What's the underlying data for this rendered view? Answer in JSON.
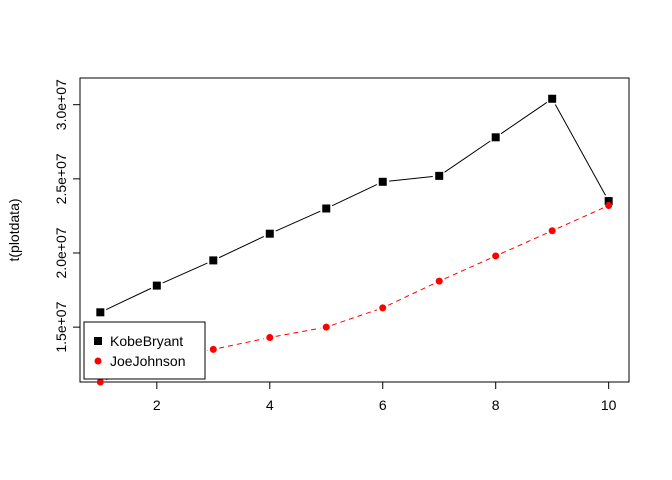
{
  "chart_data": {
    "type": "line",
    "title": "",
    "xlabel": "",
    "ylabel": "t(plotdata)",
    "xlim": [
      0.64,
      10.36
    ],
    "ylim": [
      11300000,
      31800000
    ],
    "x_ticks": [
      2,
      4,
      6,
      8,
      10
    ],
    "x_tick_labels": [
      "2",
      "4",
      "6",
      "8",
      "10"
    ],
    "y_ticks": [
      15000000,
      20000000,
      25000000,
      30000000
    ],
    "y_tick_labels": [
      "1.5e+07",
      "2.0e+07",
      "2.5e+07",
      "3.0e+07"
    ],
    "grid": false,
    "legend_position": "bottom-left",
    "x": [
      1,
      2,
      3,
      4,
      5,
      6,
      7,
      8,
      9,
      10
    ],
    "series": [
      {
        "name": "KobeBryant",
        "color": "#000000",
        "marker": "square",
        "line_style": "solid",
        "values": [
          16000000,
          17800000,
          19500000,
          21300000,
          23000000,
          24800000,
          25200000,
          27800000,
          30400000,
          23500000
        ]
      },
      {
        "name": "JoeJohnson",
        "color": "#ff0000",
        "marker": "circle",
        "line_style": "dashed",
        "values": [
          11300000,
          12800000,
          13500000,
          14300000,
          15000000,
          16300000,
          18100000,
          19800000,
          21500000,
          23200000
        ]
      }
    ]
  }
}
